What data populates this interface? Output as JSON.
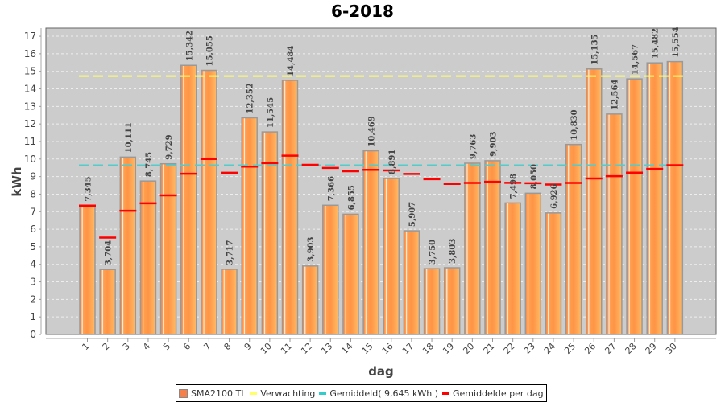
{
  "chart_data": {
    "type": "bar",
    "title": "6-2018",
    "xlabel": "dag",
    "ylabel": "kWh",
    "ylim": [
      0,
      17
    ],
    "yticks": [
      0,
      1,
      2,
      3,
      4,
      5,
      6,
      7,
      8,
      9,
      10,
      11,
      12,
      13,
      14,
      15,
      16,
      17
    ],
    "grid": true,
    "legend_position": "bottom",
    "categories": [
      "1",
      "2",
      "3",
      "4",
      "5",
      "6",
      "7",
      "8",
      "9",
      "10",
      "11",
      "12",
      "13",
      "14",
      "15",
      "16",
      "17",
      "18",
      "19",
      "20",
      "21",
      "22",
      "23",
      "24",
      "25",
      "26",
      "27",
      "28",
      "29",
      "30"
    ],
    "series": [
      {
        "name": "SMA2100 TL",
        "type": "bar",
        "color": "#f5804a",
        "values": [
          7.345,
          3.704,
          10.111,
          8.745,
          9.729,
          15.342,
          15.055,
          3.717,
          12.352,
          11.545,
          14.484,
          3.903,
          7.366,
          6.855,
          10.469,
          8.891,
          5.907,
          3.75,
          3.803,
          9.763,
          9.903,
          7.498,
          8.05,
          6.926,
          10.83,
          15.135,
          12.564,
          14.567,
          15.482,
          15.554
        ],
        "labels": [
          "7,345",
          "3,704",
          "10,111",
          "8,745",
          "9,729",
          "15,342",
          "15,055",
          "3,717",
          "12,352",
          "11,545",
          "14,484",
          "3,903",
          "7,366",
          "6,855",
          "10,469",
          "8,891",
          "5,907",
          "3,750",
          "3,803",
          "9,763",
          "9,903",
          "7,498",
          "8,050",
          "6,926",
          "10,830",
          "15,135",
          "12,564",
          "14,567",
          "15,482",
          "15,554"
        ]
      },
      {
        "name": "Verwachting",
        "type": "hline",
        "color": "#ffff66",
        "value": 14.73
      },
      {
        "name": "Gemiddeld( 9,645 kWh )",
        "type": "hline",
        "color": "#55cccc",
        "value": 9.645
      },
      {
        "name": "Gemiddelde per dag",
        "type": "marker",
        "color": "#ff0000",
        "values": [
          7.345,
          5.525,
          7.053,
          7.476,
          7.927,
          9.163,
          10.004,
          9.218,
          9.566,
          9.765,
          10.194,
          9.67,
          9.493,
          9.305,
          9.382,
          9.351,
          9.148,
          8.848,
          8.582,
          8.641,
          8.701,
          8.646,
          8.62,
          8.549,
          8.64,
          8.889,
          9.024,
          9.222,
          9.438,
          9.645
        ]
      }
    ]
  },
  "legend": {
    "items": [
      {
        "label": "SMA2100 TL",
        "kind": "box",
        "color": "#f5804a"
      },
      {
        "label": "Verwachting",
        "kind": "line",
        "color": "#ffff66"
      },
      {
        "label": "Gemiddeld( 9,645 kWh )",
        "kind": "line",
        "color": "#33cccc"
      },
      {
        "label": "Gemiddelde per dag",
        "kind": "line",
        "color": "#ff0000"
      }
    ]
  }
}
